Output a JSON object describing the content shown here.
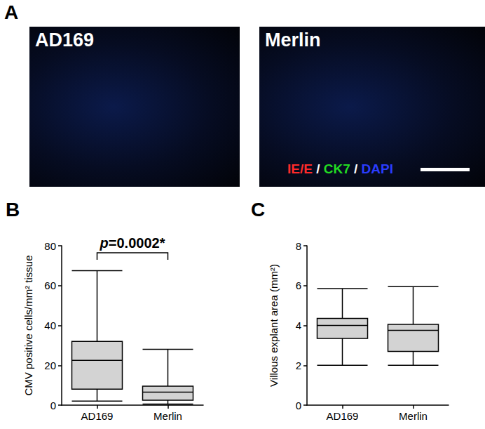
{
  "panel_a": {
    "label": "A",
    "images": [
      {
        "title": "AD169"
      },
      {
        "title": "Merlin"
      }
    ],
    "stain_legend": [
      {
        "text": "IE/E",
        "color": "#ff2a2a"
      },
      {
        "text": "CK7",
        "color": "#22dd22"
      },
      {
        "text": "DAPI",
        "color": "#2a3cff"
      }
    ],
    "separator": " / "
  },
  "chart_data": [
    {
      "type": "boxplot",
      "panel": "B",
      "y_label": "CMV positive cells/mm² tissue",
      "categories": [
        "AD169",
        "Merlin"
      ],
      "boxes": [
        {
          "min": 2,
          "q1": 8,
          "median": 22.5,
          "q3": 32,
          "max": 67.5
        },
        {
          "min": 0.5,
          "q1": 2.5,
          "median": 6.5,
          "q3": 9.5,
          "max": 28
        }
      ],
      "color": "#d3d3d3",
      "ylim": [
        0,
        80
      ],
      "yticks": [
        0,
        20,
        40,
        60,
        80
      ],
      "grid": false,
      "annotations": [
        {
          "text": "p=0.0002*",
          "between": [
            "AD169",
            "Merlin"
          ]
        }
      ]
    },
    {
      "type": "boxplot",
      "panel": "C",
      "y_label": "Villous explant area (mm²)",
      "categories": [
        "AD169",
        "Merlin"
      ],
      "boxes": [
        {
          "min": 2,
          "q1": 3.35,
          "median": 4.0,
          "q3": 4.35,
          "max": 5.85
        },
        {
          "min": 2,
          "q1": 2.7,
          "median": 3.75,
          "q3": 4.05,
          "max": 5.95
        }
      ],
      "color": "#d3d3d3",
      "ylim": [
        0,
        8
      ],
      "yticks": [
        0,
        2,
        4,
        6,
        8
      ],
      "grid": false
    }
  ]
}
